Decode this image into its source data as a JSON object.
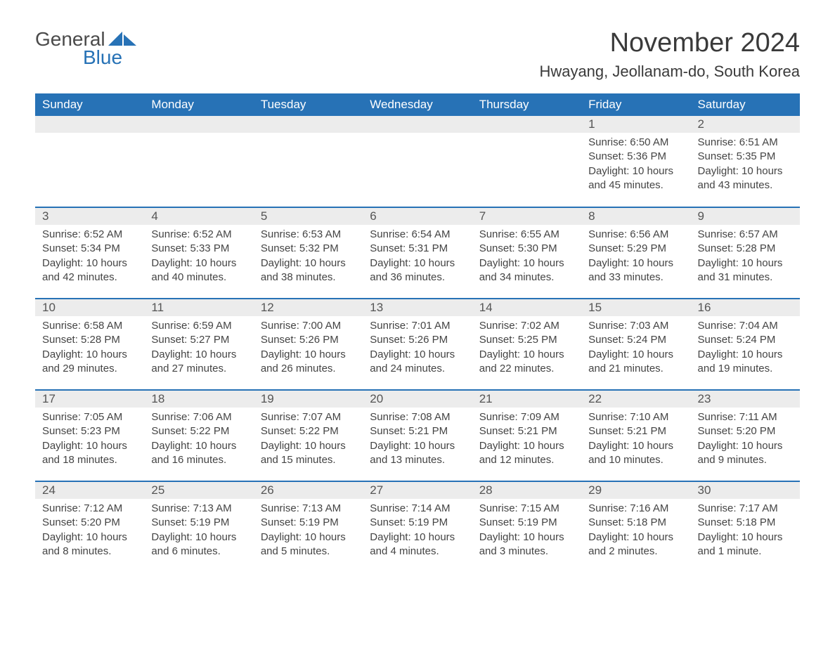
{
  "logo": {
    "word1": "General",
    "word2": "Blue",
    "icon_color": "#2772b6"
  },
  "title": "November 2024",
  "location": "Hwayang, Jeollanam-do, South Korea",
  "colors": {
    "header_bg": "#2772b6",
    "header_text": "#ffffff",
    "daynum_bg": "#ececec",
    "row_border": "#2772b6",
    "text": "#444444"
  },
  "typography": {
    "title_fontsize": 38,
    "location_fontsize": 22,
    "dayheader_fontsize": 17,
    "daynum_fontsize": 17,
    "body_fontsize": 15
  },
  "day_headers": [
    "Sunday",
    "Monday",
    "Tuesday",
    "Wednesday",
    "Thursday",
    "Friday",
    "Saturday"
  ],
  "weeks": [
    [
      null,
      null,
      null,
      null,
      null,
      {
        "n": "1",
        "sunrise": "Sunrise: 6:50 AM",
        "sunset": "Sunset: 5:36 PM",
        "daylight": "Daylight: 10 hours and 45 minutes."
      },
      {
        "n": "2",
        "sunrise": "Sunrise: 6:51 AM",
        "sunset": "Sunset: 5:35 PM",
        "daylight": "Daylight: 10 hours and 43 minutes."
      }
    ],
    [
      {
        "n": "3",
        "sunrise": "Sunrise: 6:52 AM",
        "sunset": "Sunset: 5:34 PM",
        "daylight": "Daylight: 10 hours and 42 minutes."
      },
      {
        "n": "4",
        "sunrise": "Sunrise: 6:52 AM",
        "sunset": "Sunset: 5:33 PM",
        "daylight": "Daylight: 10 hours and 40 minutes."
      },
      {
        "n": "5",
        "sunrise": "Sunrise: 6:53 AM",
        "sunset": "Sunset: 5:32 PM",
        "daylight": "Daylight: 10 hours and 38 minutes."
      },
      {
        "n": "6",
        "sunrise": "Sunrise: 6:54 AM",
        "sunset": "Sunset: 5:31 PM",
        "daylight": "Daylight: 10 hours and 36 minutes."
      },
      {
        "n": "7",
        "sunrise": "Sunrise: 6:55 AM",
        "sunset": "Sunset: 5:30 PM",
        "daylight": "Daylight: 10 hours and 34 minutes."
      },
      {
        "n": "8",
        "sunrise": "Sunrise: 6:56 AM",
        "sunset": "Sunset: 5:29 PM",
        "daylight": "Daylight: 10 hours and 33 minutes."
      },
      {
        "n": "9",
        "sunrise": "Sunrise: 6:57 AM",
        "sunset": "Sunset: 5:28 PM",
        "daylight": "Daylight: 10 hours and 31 minutes."
      }
    ],
    [
      {
        "n": "10",
        "sunrise": "Sunrise: 6:58 AM",
        "sunset": "Sunset: 5:28 PM",
        "daylight": "Daylight: 10 hours and 29 minutes."
      },
      {
        "n": "11",
        "sunrise": "Sunrise: 6:59 AM",
        "sunset": "Sunset: 5:27 PM",
        "daylight": "Daylight: 10 hours and 27 minutes."
      },
      {
        "n": "12",
        "sunrise": "Sunrise: 7:00 AM",
        "sunset": "Sunset: 5:26 PM",
        "daylight": "Daylight: 10 hours and 26 minutes."
      },
      {
        "n": "13",
        "sunrise": "Sunrise: 7:01 AM",
        "sunset": "Sunset: 5:26 PM",
        "daylight": "Daylight: 10 hours and 24 minutes."
      },
      {
        "n": "14",
        "sunrise": "Sunrise: 7:02 AM",
        "sunset": "Sunset: 5:25 PM",
        "daylight": "Daylight: 10 hours and 22 minutes."
      },
      {
        "n": "15",
        "sunrise": "Sunrise: 7:03 AM",
        "sunset": "Sunset: 5:24 PM",
        "daylight": "Daylight: 10 hours and 21 minutes."
      },
      {
        "n": "16",
        "sunrise": "Sunrise: 7:04 AM",
        "sunset": "Sunset: 5:24 PM",
        "daylight": "Daylight: 10 hours and 19 minutes."
      }
    ],
    [
      {
        "n": "17",
        "sunrise": "Sunrise: 7:05 AM",
        "sunset": "Sunset: 5:23 PM",
        "daylight": "Daylight: 10 hours and 18 minutes."
      },
      {
        "n": "18",
        "sunrise": "Sunrise: 7:06 AM",
        "sunset": "Sunset: 5:22 PM",
        "daylight": "Daylight: 10 hours and 16 minutes."
      },
      {
        "n": "19",
        "sunrise": "Sunrise: 7:07 AM",
        "sunset": "Sunset: 5:22 PM",
        "daylight": "Daylight: 10 hours and 15 minutes."
      },
      {
        "n": "20",
        "sunrise": "Sunrise: 7:08 AM",
        "sunset": "Sunset: 5:21 PM",
        "daylight": "Daylight: 10 hours and 13 minutes."
      },
      {
        "n": "21",
        "sunrise": "Sunrise: 7:09 AM",
        "sunset": "Sunset: 5:21 PM",
        "daylight": "Daylight: 10 hours and 12 minutes."
      },
      {
        "n": "22",
        "sunrise": "Sunrise: 7:10 AM",
        "sunset": "Sunset: 5:21 PM",
        "daylight": "Daylight: 10 hours and 10 minutes."
      },
      {
        "n": "23",
        "sunrise": "Sunrise: 7:11 AM",
        "sunset": "Sunset: 5:20 PM",
        "daylight": "Daylight: 10 hours and 9 minutes."
      }
    ],
    [
      {
        "n": "24",
        "sunrise": "Sunrise: 7:12 AM",
        "sunset": "Sunset: 5:20 PM",
        "daylight": "Daylight: 10 hours and 8 minutes."
      },
      {
        "n": "25",
        "sunrise": "Sunrise: 7:13 AM",
        "sunset": "Sunset: 5:19 PM",
        "daylight": "Daylight: 10 hours and 6 minutes."
      },
      {
        "n": "26",
        "sunrise": "Sunrise: 7:13 AM",
        "sunset": "Sunset: 5:19 PM",
        "daylight": "Daylight: 10 hours and 5 minutes."
      },
      {
        "n": "27",
        "sunrise": "Sunrise: 7:14 AM",
        "sunset": "Sunset: 5:19 PM",
        "daylight": "Daylight: 10 hours and 4 minutes."
      },
      {
        "n": "28",
        "sunrise": "Sunrise: 7:15 AM",
        "sunset": "Sunset: 5:19 PM",
        "daylight": "Daylight: 10 hours and 3 minutes."
      },
      {
        "n": "29",
        "sunrise": "Sunrise: 7:16 AM",
        "sunset": "Sunset: 5:18 PM",
        "daylight": "Daylight: 10 hours and 2 minutes."
      },
      {
        "n": "30",
        "sunrise": "Sunrise: 7:17 AM",
        "sunset": "Sunset: 5:18 PM",
        "daylight": "Daylight: 10 hours and 1 minute."
      }
    ]
  ]
}
